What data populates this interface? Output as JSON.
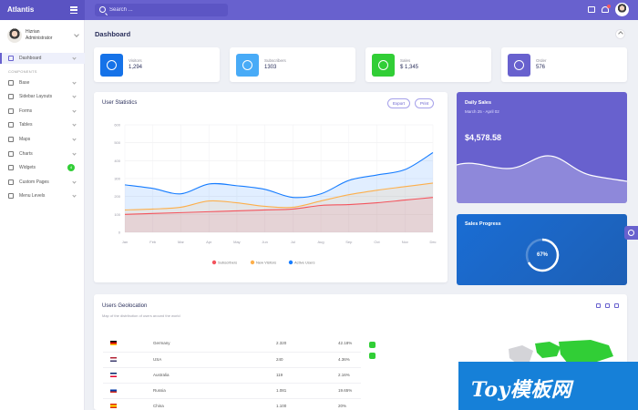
{
  "topbar": {
    "brand": "Atlantis",
    "search_placeholder": "Search ...",
    "colors": {
      "topbar": "#6861ce",
      "brand": "#5a53c2"
    }
  },
  "sidebar": {
    "user": {
      "name": "Hizrian",
      "role": "Administrator"
    },
    "items": [
      {
        "label": "Dashboard",
        "icon": "home-icon",
        "active": true,
        "caret": true
      },
      {
        "section": "COMPONENTS"
      },
      {
        "label": "Base",
        "icon": "layers-icon",
        "caret": true
      },
      {
        "label": "Sidebar Layouts",
        "icon": "th-list-icon",
        "caret": true
      },
      {
        "label": "Forms",
        "icon": "pen-icon",
        "caret": true
      },
      {
        "label": "Tables",
        "icon": "table-icon",
        "caret": true
      },
      {
        "label": "Maps",
        "icon": "map-marker-icon",
        "caret": true
      },
      {
        "label": "Charts",
        "icon": "chart-icon",
        "caret": true
      },
      {
        "label": "Widgets",
        "icon": "desktop-icon",
        "badge": "4"
      },
      {
        "label": "Custom Pages",
        "icon": "custom-page-icon",
        "caret": true
      },
      {
        "label": "Menu Levels",
        "icon": "bars-icon",
        "caret": true
      }
    ]
  },
  "page": {
    "title": "Dashboard"
  },
  "stats": [
    {
      "label": "Visitors",
      "value": "1,294",
      "color": "#1572e8"
    },
    {
      "label": "Subscribers",
      "value": "1303",
      "color": "#48abf7"
    },
    {
      "label": "Sales",
      "value": "$ 1,345",
      "color": "#31ce36"
    },
    {
      "label": "Order",
      "value": "576",
      "color": "#6861ce"
    }
  ],
  "chart_data": {
    "type": "area",
    "title": "User Statistics",
    "buttons": [
      "Export",
      "Print"
    ],
    "categories": [
      "Jan",
      "Feb",
      "Mar",
      "Apr",
      "May",
      "Jun",
      "Jul",
      "Aug",
      "Sep",
      "Oct",
      "Nov",
      "Dec"
    ],
    "y_ticks": [
      0,
      100,
      200,
      300,
      400,
      500,
      600
    ],
    "ylim": [
      0,
      600
    ],
    "grid": true,
    "legend_position": "bottom",
    "series": [
      {
        "name": "Subscribers",
        "color": "#f3545d",
        "values": [
          100,
          105,
          110,
          115,
          120,
          125,
          130,
          150,
          155,
          165,
          180,
          195
        ]
      },
      {
        "name": "New Visitors",
        "color": "#fdaf4b",
        "values": [
          125,
          130,
          140,
          175,
          165,
          145,
          140,
          175,
          210,
          235,
          255,
          275
        ]
      },
      {
        "name": "Active Users",
        "color": "#177dff",
        "values": [
          265,
          245,
          215,
          270,
          260,
          240,
          195,
          215,
          290,
          320,
          350,
          445
        ]
      }
    ]
  },
  "daily_sales": {
    "title": "Daily Sales",
    "date": "March 25 - April 02",
    "value": "$4,578.58"
  },
  "sales_progress": {
    "title": "Sales Progress",
    "percent": 0.67,
    "label": "67%"
  },
  "users_geo": {
    "title": "Users Geolocation",
    "subtitle": "Map of the distribution of users around the world",
    "rows": [
      {
        "flag_colors": [
          "#000000",
          "#dd0000",
          "#ffce00"
        ],
        "country": "Germany",
        "users": "2.320",
        "percent": "42.18%"
      },
      {
        "flag_colors": [
          "#b22234",
          "#ffffff",
          "#3c3b6e"
        ],
        "country": "USA",
        "users": "240",
        "percent": "4.36%"
      },
      {
        "flag_colors": [
          "#012169",
          "#ffffff",
          "#e4002b"
        ],
        "country": "Australia",
        "users": "119",
        "percent": "2.16%"
      },
      {
        "flag_colors": [
          "#ffffff",
          "#0039a6",
          "#d52b1e"
        ],
        "country": "Russia",
        "users": "1.081",
        "percent": "19.65%"
      },
      {
        "flag_colors": [
          "#de2910",
          "#ffde00",
          "#de2910"
        ],
        "country": "China",
        "users": "1.100",
        "percent": "20%"
      }
    ]
  },
  "watermark": {
    "text": "Toy模板网"
  }
}
